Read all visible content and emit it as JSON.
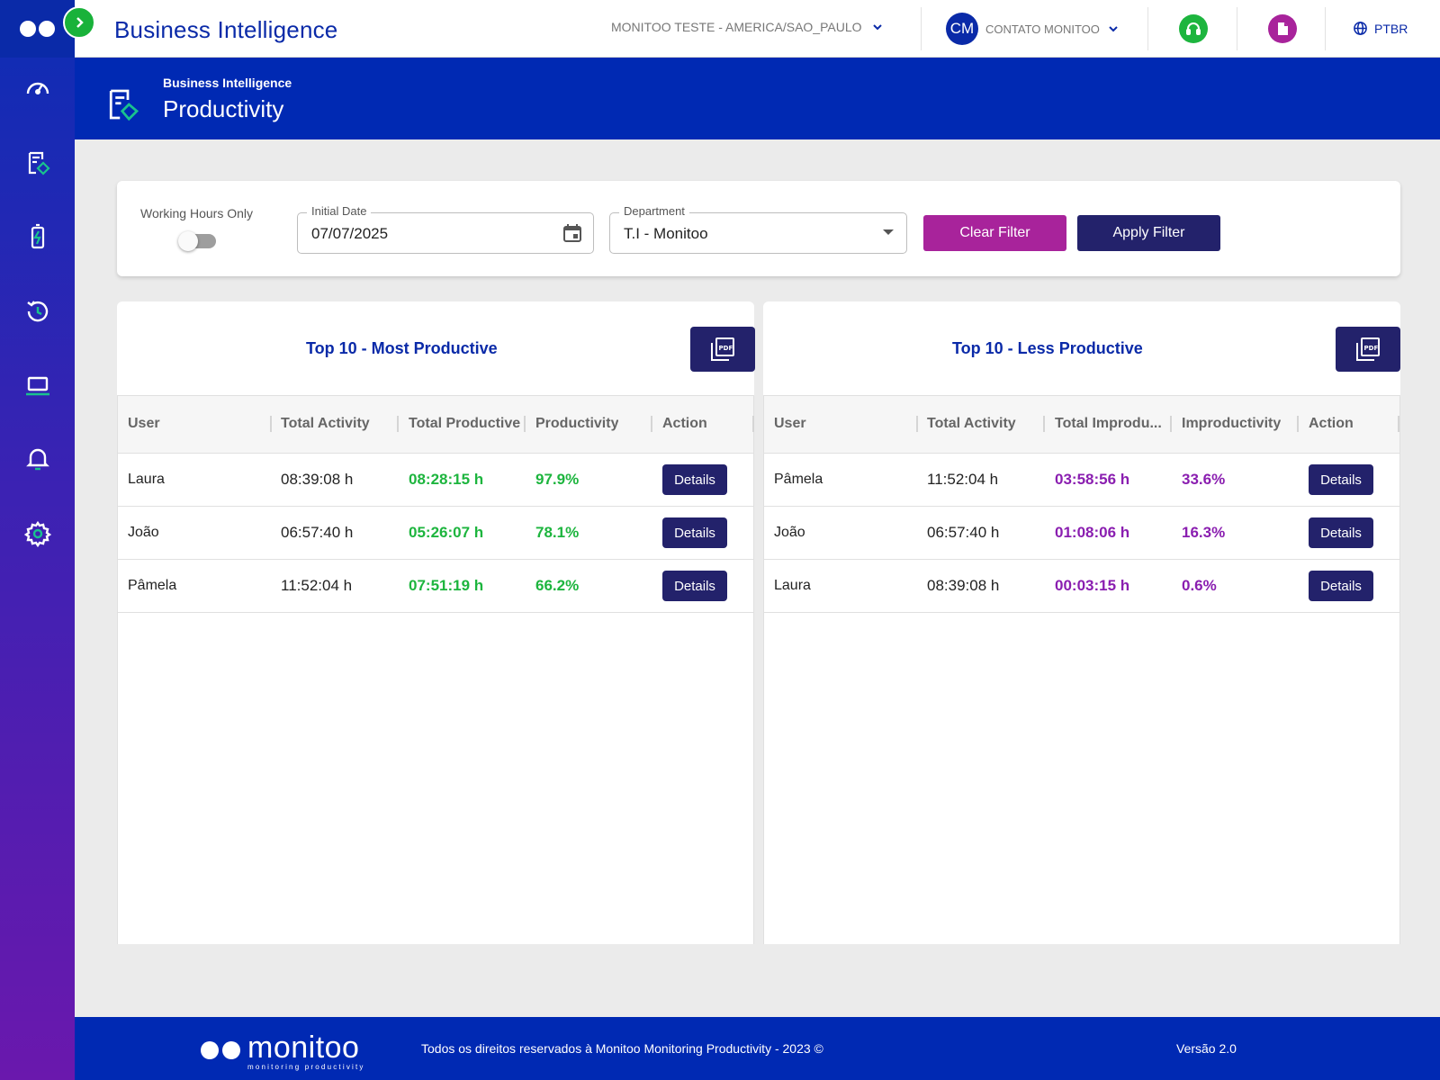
{
  "app": {
    "title": "Business Intelligence"
  },
  "topbar": {
    "org": "MONITOO TESTE - AMERICA/SAO_PAULO",
    "user_initials": "CM",
    "user_name": "CONTATO MONITOO",
    "language": "PTBR"
  },
  "page_header": {
    "breadcrumb": "Business Intelligence",
    "title": "Productivity"
  },
  "filters": {
    "working_hours_label": "Working Hours Only",
    "working_hours_on": false,
    "initial_date_label": "Initial Date",
    "initial_date_value": "07/07/2025",
    "department_label": "Department",
    "department_value": "T.I - Monitoo",
    "clear_label": "Clear Filter",
    "apply_label": "Apply Filter"
  },
  "most_productive": {
    "title": "Top 10 - Most Productive",
    "columns": [
      "User",
      "Total Activity",
      "Total Productive",
      "Productivity",
      "Action"
    ],
    "rows": [
      {
        "user": "Laura",
        "total_activity": "08:39:08 h",
        "total_productive": "08:28:15 h",
        "productivity": "97.9%",
        "action": "Details"
      },
      {
        "user": "João",
        "total_activity": "06:57:40 h",
        "total_productive": "05:26:07 h",
        "productivity": "78.1%",
        "action": "Details"
      },
      {
        "user": "Pâmela",
        "total_activity": "11:52:04 h",
        "total_productive": "07:51:19 h",
        "productivity": "66.2%",
        "action": "Details"
      }
    ]
  },
  "less_productive": {
    "title": "Top 10 - Less Productive",
    "columns": [
      "User",
      "Total Activity",
      "Total Improdu...",
      "Improductivity",
      "Action"
    ],
    "rows": [
      {
        "user": "Pâmela",
        "total_activity": "11:52:04 h",
        "total_improductive": "03:58:56 h",
        "improductivity": "33.6%",
        "action": "Details"
      },
      {
        "user": "João",
        "total_activity": "06:57:40 h",
        "total_improductive": "01:08:06 h",
        "improductivity": "16.3%",
        "action": "Details"
      },
      {
        "user": "Laura",
        "total_activity": "08:39:08 h",
        "total_improductive": "00:03:15 h",
        "improductivity": "0.6%",
        "action": "Details"
      }
    ]
  },
  "footer": {
    "logo_word": "monitoo",
    "logo_tag": "monitoring productivity",
    "copyright": "Todos os direitos reservados à Monitoo Monitoring Productivity - 2023 ©",
    "version": "Versão 2.0"
  },
  "colors": {
    "brand_blue": "#0029b3",
    "navy_button": "#23226b",
    "magenta_button": "#a8239b",
    "productive_green": "#1db53e",
    "improductive_purple": "#8a1eb0"
  },
  "icons": {
    "sidebar": [
      "dashboard-gauge-icon",
      "bi-report-icon",
      "battery-icon",
      "history-icon",
      "laptop-icon",
      "bell-icon",
      "gear-icon"
    ],
    "topbar": [
      "chevron-down-icon",
      "headset-icon",
      "document-icon",
      "globe-icon"
    ],
    "panels": [
      "pdf-icon"
    ]
  }
}
